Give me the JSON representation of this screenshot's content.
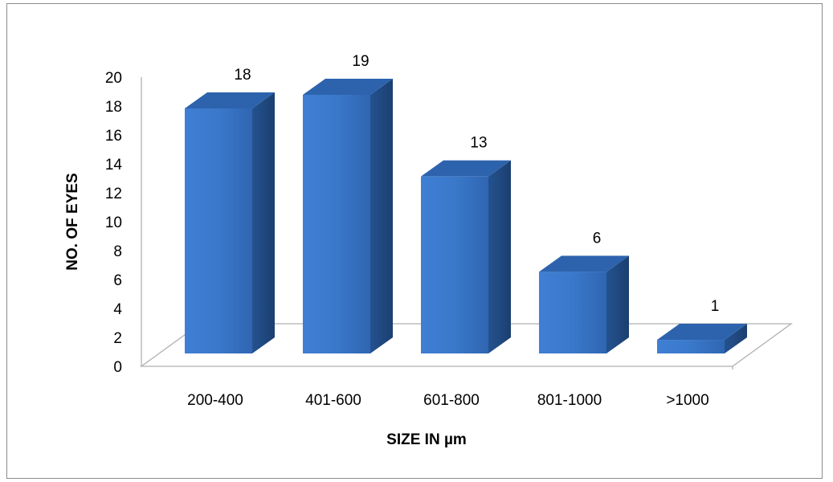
{
  "chart_data": {
    "type": "bar",
    "style": "3d-column",
    "title": "",
    "xlabel": "SIZE IN µm",
    "ylabel": "NO. OF EYES",
    "categories": [
      "200-400",
      "401-600",
      "601-800",
      "801-1000",
      ">1000"
    ],
    "values": [
      18,
      19,
      13,
      6,
      1
    ],
    "data_labels": [
      "18",
      "19",
      "13",
      "6",
      "1"
    ],
    "yticks": [
      "0",
      "2",
      "4",
      "6",
      "8",
      "10",
      "12",
      "14",
      "16",
      "18",
      "20"
    ],
    "ylim": [
      0,
      20
    ],
    "grid": false,
    "legend": "none",
    "colors": {
      "front": "#3a76c8",
      "side": "#1f4f8c",
      "top": "#2d63ad",
      "floor": "#c8c8c8"
    }
  }
}
